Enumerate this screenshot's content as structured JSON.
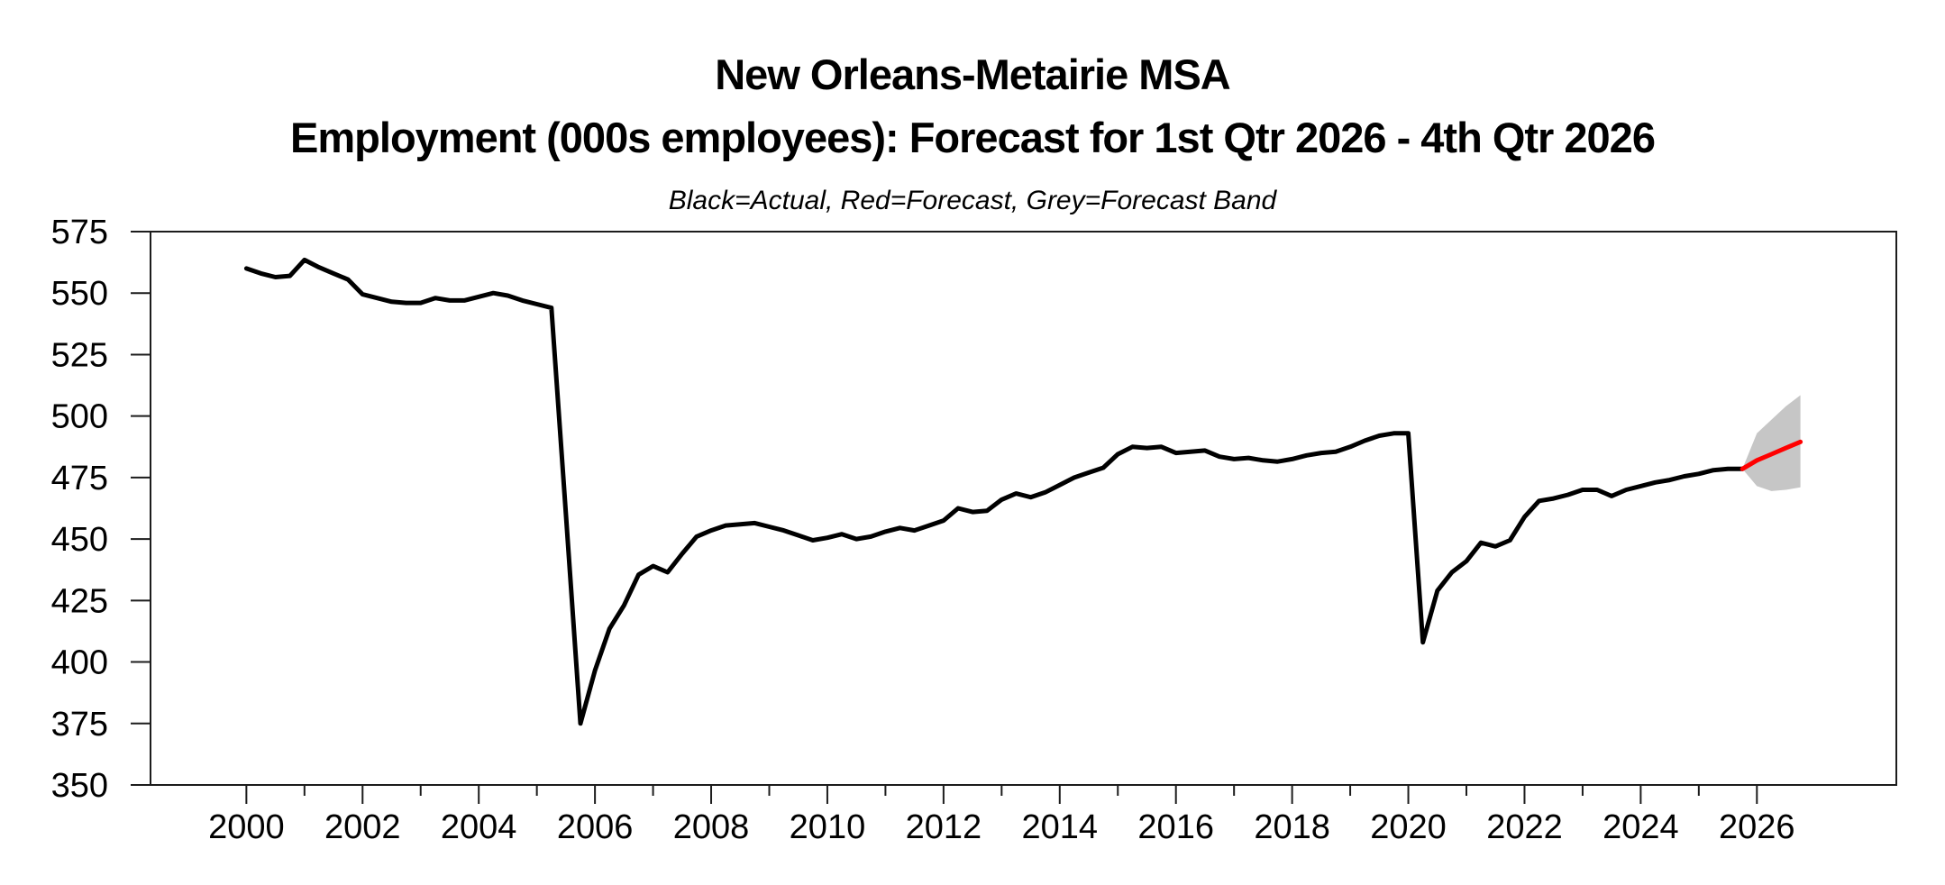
{
  "header": {
    "title_line1": "New Orleans-Metairie MSA",
    "title_line2": "Employment (000s employees): Forecast for 1st Qtr 2026 - 4th Qtr 2026",
    "subtitle": "Black=Actual, Red=Forecast, Grey=Forecast Band"
  },
  "colors": {
    "actual": "#000000",
    "forecast": "#ff0000",
    "band": "#c6c6c6",
    "axis": "#1c1c1c",
    "background": "#ffffff"
  },
  "chart_data": {
    "type": "line",
    "title": "New Orleans-Metairie MSA — Employment (000s employees): Forecast for 1st Qtr 2026 - 4th Qtr 2026",
    "legend_note": "Black=Actual, Red=Forecast, Grey=Forecast Band",
    "xlabel": "",
    "ylabel": "",
    "grid": false,
    "legend_position": "none",
    "x_axis": {
      "min": 1998.35,
      "max": 2028.4,
      "major_ticks": [
        2000,
        2002,
        2004,
        2006,
        2008,
        2010,
        2012,
        2014,
        2016,
        2018,
        2020,
        2022,
        2024,
        2026
      ],
      "minor_ticks": [
        2001,
        2003,
        2005,
        2007,
        2009,
        2011,
        2013,
        2015,
        2017,
        2019,
        2021,
        2023,
        2025
      ]
    },
    "y_axis": {
      "min": 350,
      "max": 575,
      "ticks": [
        350,
        375,
        400,
        425,
        450,
        475,
        500,
        525,
        550,
        575
      ]
    },
    "series": [
      {
        "name": "Actual",
        "color_key": "actual",
        "start": 2000.0,
        "step": 0.25,
        "values": [
          560,
          558,
          556.5,
          557,
          563.5,
          560.5,
          558,
          555.5,
          549.5,
          548,
          546.5,
          546,
          546,
          548,
          547,
          547,
          548.5,
          550,
          549,
          547,
          545.5,
          544,
          460,
          375,
          396.5,
          413.5,
          423,
          435.5,
          439,
          436.5,
          444,
          451,
          453.5,
          455.5,
          456,
          456.5,
          455,
          453.5,
          451.5,
          449.5,
          450.5,
          452,
          450,
          451,
          453,
          454.5,
          453.5,
          455.5,
          457.5,
          462.5,
          461,
          461.5,
          466,
          468.5,
          467,
          469,
          472,
          475,
          477,
          479,
          484.5,
          487.5,
          487,
          487.5,
          485,
          485.5,
          486,
          483.5,
          482.5,
          483,
          482,
          481.5,
          482.5,
          484,
          485,
          485.5,
          487.5,
          490,
          492,
          493,
          493,
          408,
          429,
          436.5,
          441,
          448.5,
          447,
          449.5,
          459,
          465.5,
          466.5,
          468,
          470,
          470,
          467.5,
          470,
          471.5,
          473,
          474,
          475.5,
          476.5,
          478,
          478.5,
          478.5
        ]
      },
      {
        "name": "Forecast",
        "color_key": "forecast",
        "start": 2025.75,
        "step": 0.25,
        "values": [
          478.5,
          482,
          484.5,
          487,
          489.5
        ]
      }
    ],
    "band": {
      "name": "Forecast Band",
      "color_key": "band",
      "start": 2025.75,
      "step": 0.25,
      "upper": [
        478.5,
        493,
        498.5,
        504,
        508.5
      ],
      "lower": [
        478.5,
        471.5,
        469.5,
        470,
        471
      ]
    }
  }
}
